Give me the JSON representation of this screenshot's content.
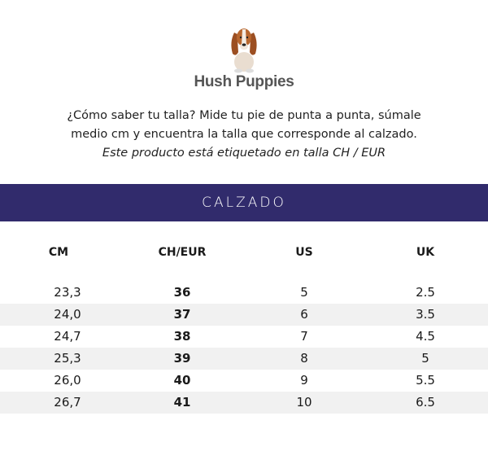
{
  "brand": {
    "name": "Hush Puppies",
    "logo_icon": "basset-hound-dog-logo"
  },
  "intro": {
    "line1": "¿Cómo saber tu talla? Mide tu pie de punta a punta, súmale",
    "line2": "medio cm y encuentra la talla que corresponde al calzado.",
    "line3": "Este producto está etiquetado en talla CH / EUR"
  },
  "section": {
    "title": "CALZADO",
    "color": "#312b6c"
  },
  "table": {
    "headers": [
      "CM",
      "CH/EUR",
      "US",
      "UK"
    ],
    "rows": [
      [
        "23,3",
        "36",
        "5",
        "2.5"
      ],
      [
        "24,0",
        "37",
        "6",
        "3.5"
      ],
      [
        "24,7",
        "38",
        "7",
        "4.5"
      ],
      [
        "25,3",
        "39",
        "8",
        "5"
      ],
      [
        "26,0",
        "40",
        "9",
        "5.5"
      ],
      [
        "26,7",
        "41",
        "10",
        "6.5"
      ]
    ]
  }
}
